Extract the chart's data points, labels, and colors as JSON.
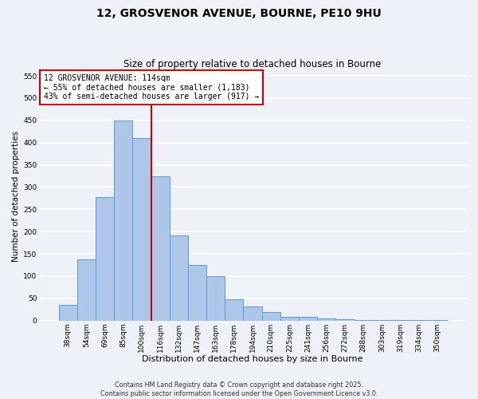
{
  "title": "12, GROSVENOR AVENUE, BOURNE, PE10 9HU",
  "subtitle": "Size of property relative to detached houses in Bourne",
  "xlabel": "Distribution of detached houses by size in Bourne",
  "ylabel": "Number of detached properties",
  "bar_labels": [
    "38sqm",
    "54sqm",
    "69sqm",
    "85sqm",
    "100sqm",
    "116sqm",
    "132sqm",
    "147sqm",
    "163sqm",
    "178sqm",
    "194sqm",
    "210sqm",
    "225sqm",
    "241sqm",
    "256sqm",
    "272sqm",
    "288sqm",
    "303sqm",
    "319sqm",
    "334sqm",
    "350sqm"
  ],
  "bar_values": [
    35,
    137,
    277,
    450,
    410,
    325,
    192,
    125,
    100,
    47,
    32,
    20,
    8,
    8,
    5,
    3,
    2,
    1,
    1,
    1,
    2
  ],
  "bar_color": "#aec6e8",
  "bar_edge_color": "#5b9bd5",
  "ylim": [
    0,
    560
  ],
  "yticks": [
    0,
    50,
    100,
    150,
    200,
    250,
    300,
    350,
    400,
    450,
    500,
    550
  ],
  "vline_index": 4.5,
  "vline_color": "#cc0000",
  "annotation_title": "12 GROSVENOR AVENUE: 114sqm",
  "annotation_line1": "← 55% of detached houses are smaller (1,183)",
  "annotation_line2": "43% of semi-detached houses are larger (917) →",
  "annotation_box_color": "#cc0000",
  "footnote1": "Contains HM Land Registry data © Crown copyright and database right 2025.",
  "footnote2": "Contains public sector information licensed under the Open Government Licence v3.0.",
  "background_color": "#eef2f8",
  "grid_color": "#ffffff",
  "title_fontsize": 10,
  "subtitle_fontsize": 8.5,
  "tick_fontsize": 6.5,
  "xlabel_fontsize": 8,
  "ylabel_fontsize": 7.5,
  "footnote_fontsize": 5.8
}
